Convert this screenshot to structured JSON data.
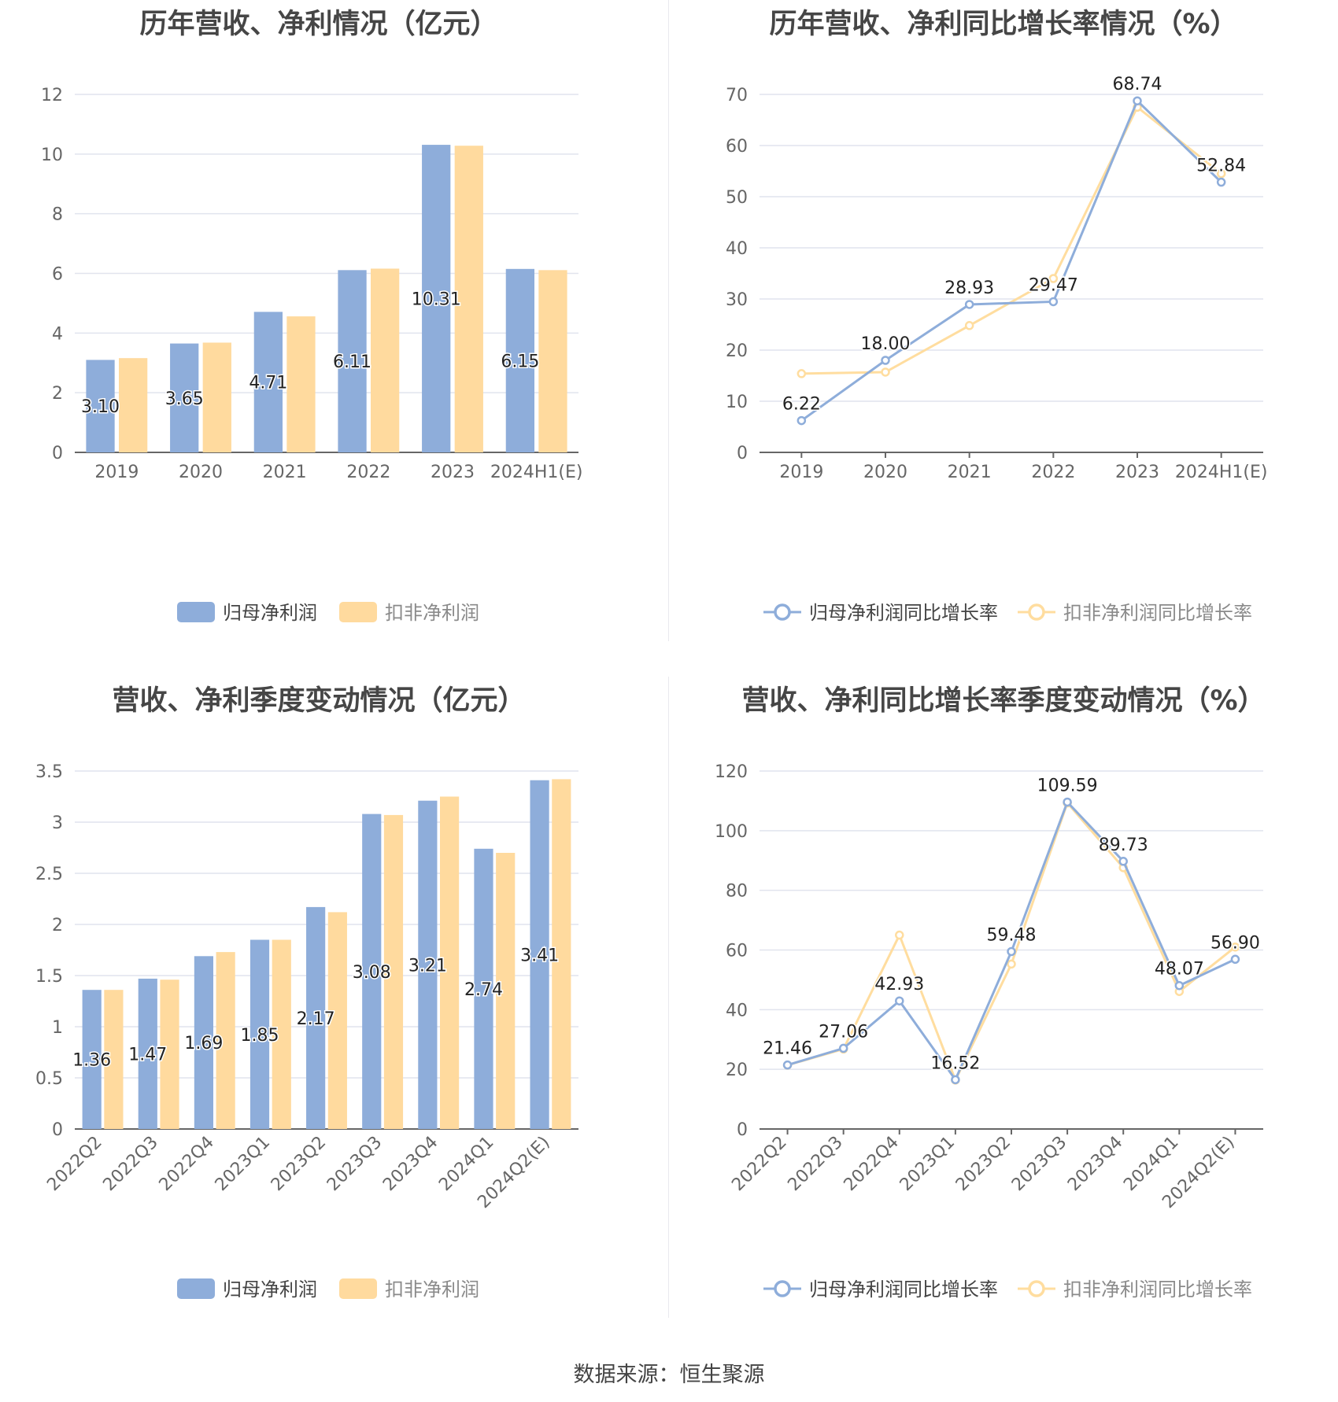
{
  "footer": "数据来源：恒生聚源",
  "colors": {
    "primary": "#8eadda",
    "secondary": "#ffda9e",
    "primary_line": "#8eadda",
    "secondary_line": "#ffdd9f",
    "grid": "#e1e4ee",
    "axis": "#666666",
    "label": "#222222"
  },
  "chart_data": [
    {
      "type": "bar",
      "title": "历年营收、净利情况（亿元）",
      "categories": [
        "2019",
        "2020",
        "2021",
        "2022",
        "2023",
        "2024H1(E)"
      ],
      "ylim": [
        0,
        12
      ],
      "yticks": [
        "0",
        "2",
        "4",
        "6",
        "8",
        "10",
        "12"
      ],
      "series": [
        {
          "name": "归母净利润",
          "values": [
            3.1,
            3.65,
            4.71,
            6.11,
            10.31,
            6.15
          ]
        },
        {
          "name": "扣非净利润",
          "values": [
            3.16,
            3.68,
            4.56,
            6.16,
            10.28,
            6.11
          ]
        }
      ],
      "data_labels": [
        "3.10",
        "3.65",
        "4.71",
        "6.11",
        "10.31",
        "6.15"
      ],
      "grid": true,
      "legend": "bottom"
    },
    {
      "type": "line",
      "title": "历年营收、净利同比增长率情况（%）",
      "categories": [
        "2019",
        "2020",
        "2021",
        "2022",
        "2023",
        "2024H1(E)"
      ],
      "ylim": [
        0,
        70
      ],
      "yticks": [
        "0",
        "10",
        "20",
        "30",
        "40",
        "50",
        "60",
        "70"
      ],
      "series": [
        {
          "name": "归母净利润同比增长率",
          "values": [
            6.22,
            18.0,
            28.93,
            29.47,
            68.74,
            52.84
          ]
        },
        {
          "name": "扣非净利润同比增长率",
          "values": [
            15.4,
            15.7,
            24.8,
            34.0,
            67.5,
            54.5
          ]
        }
      ],
      "data_labels": [
        "6.22",
        "18.00",
        "28.93",
        "29.47",
        "68.74",
        "52.84"
      ],
      "grid": true,
      "legend": "bottom"
    },
    {
      "type": "bar",
      "title": "营收、净利季度变动情况（亿元）",
      "categories": [
        "2022Q2",
        "2022Q3",
        "2022Q4",
        "2023Q1",
        "2023Q2",
        "2023Q3",
        "2023Q4",
        "2024Q1",
        "2024Q2(E)"
      ],
      "ylim": [
        0,
        3.5
      ],
      "yticks": [
        "0",
        "0.5",
        "1",
        "1.5",
        "2",
        "2.5",
        "3",
        "3.5"
      ],
      "series": [
        {
          "name": "归母净利润",
          "values": [
            1.36,
            1.47,
            1.69,
            1.85,
            2.17,
            3.08,
            3.21,
            2.74,
            3.41
          ]
        },
        {
          "name": "扣非净利润",
          "values": [
            1.36,
            1.46,
            1.73,
            1.85,
            2.12,
            3.07,
            3.25,
            2.7,
            3.42
          ]
        }
      ],
      "data_labels": [
        "1.36",
        "1.47",
        "1.69",
        "1.85",
        "2.17",
        "3.08",
        "3.21",
        "2.74",
        "3.41"
      ],
      "grid": true,
      "legend": "bottom"
    },
    {
      "type": "line",
      "title": "营收、净利同比增长率季度变动情况（%）",
      "categories": [
        "2022Q2",
        "2022Q3",
        "2022Q4",
        "2023Q1",
        "2023Q2",
        "2023Q3",
        "2023Q4",
        "2024Q1",
        "2024Q2(E)"
      ],
      "ylim": [
        0,
        120
      ],
      "yticks": [
        "0",
        "20",
        "40",
        "60",
        "80",
        "100",
        "120"
      ],
      "series": [
        {
          "name": "归母净利润同比增长率",
          "values": [
            21.46,
            27.06,
            42.93,
            16.52,
            59.48,
            109.59,
            89.73,
            48.07,
            56.9
          ]
        },
        {
          "name": "扣非净利润同比增长率",
          "values": [
            21.4,
            26.8,
            65.0,
            16.4,
            55.3,
            109.3,
            87.6,
            46.1,
            61.0
          ]
        }
      ],
      "data_labels": [
        "21.46",
        "27.06",
        "42.93",
        "16.52",
        "59.48",
        "109.59",
        "89.73",
        "48.07",
        "56.90"
      ],
      "grid": true,
      "legend": "bottom"
    }
  ]
}
